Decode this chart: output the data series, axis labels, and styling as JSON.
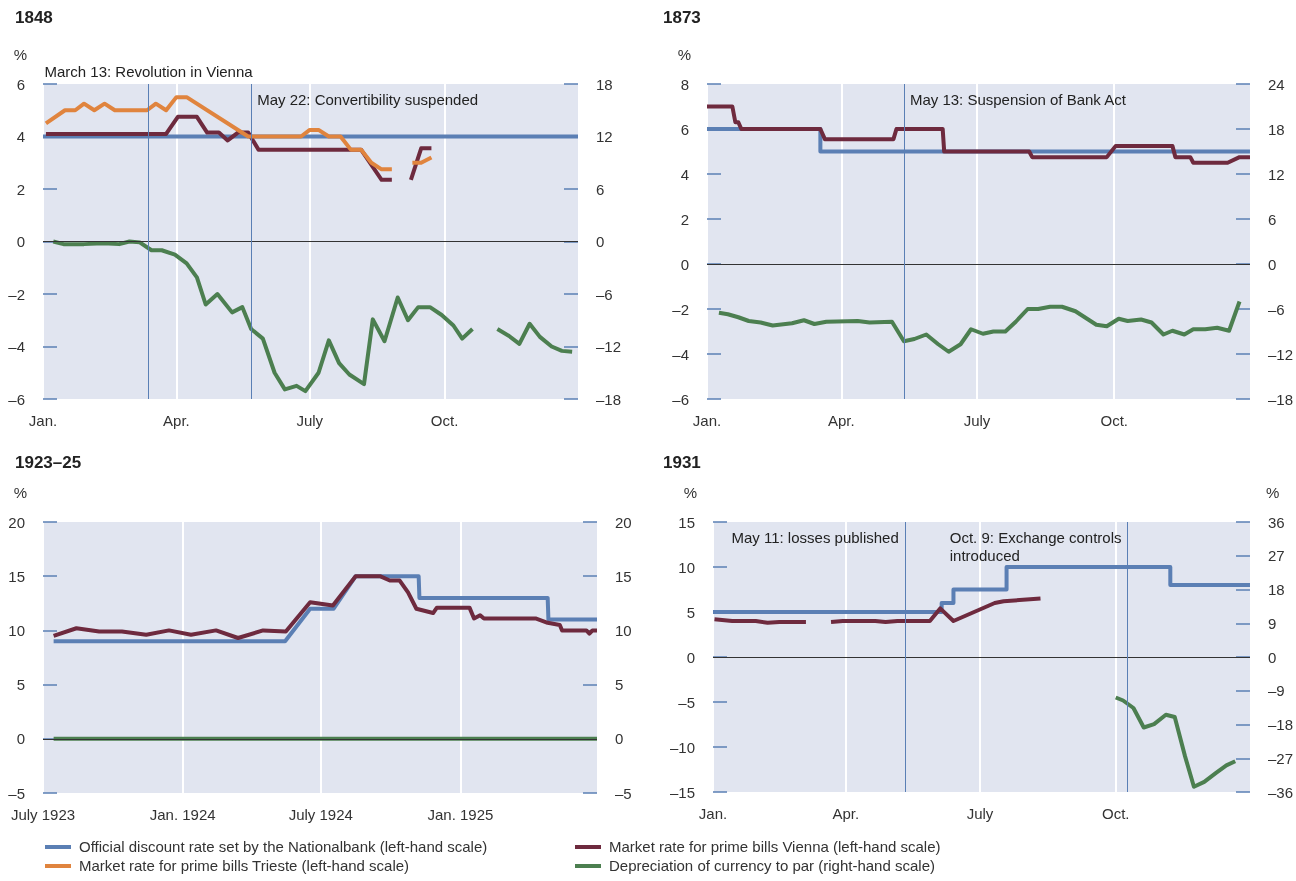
{
  "chart_data": [
    {
      "type": "line",
      "title": "1848",
      "ylabel": "%",
      "xlim": [
        "1848-01-01",
        "1848-12-31"
      ],
      "xticks": [
        {
          "value": "1848-01-01",
          "label": "Jan."
        },
        {
          "value": "1848-04-01",
          "label": "Apr."
        },
        {
          "value": "1848-07-01",
          "label": "July"
        },
        {
          "value": "1848-10-01",
          "label": "Oct."
        }
      ],
      "ylim": [
        -6,
        6
      ],
      "yticks": [
        {
          "value": -6,
          "label": "–6"
        },
        {
          "value": -4,
          "label": "–4"
        },
        {
          "value": -2,
          "label": "–2"
        },
        0,
        2,
        4,
        6
      ],
      "y2lim": [
        -18,
        18
      ],
      "y2ticks": [
        {
          "value": -18,
          "label": "–18"
        },
        {
          "value": -12,
          "label": "–12"
        },
        {
          "value": -6,
          "label": "–6"
        },
        0,
        6,
        12,
        18
      ],
      "grid": "x",
      "legend": "bottom",
      "ref_lines": [
        {
          "axis": "y",
          "value": 0,
          "color": "#333333"
        },
        {
          "axis": "x",
          "value": "1848-03-13",
          "label": "March 13: Revolution in Vienna",
          "color": "#5a7fb5"
        },
        {
          "axis": "x",
          "value": "1848-05-22",
          "label": "May 22: Convertibility suspended",
          "color": "#5a7fb5"
        }
      ],
      "series": [
        {
          "name": "Official discount rate set by the Nationalbank (left-hand scale)",
          "type": "step",
          "color": "#5b7fb4",
          "x": [
            "1848-01-01",
            "1848-12-31"
          ],
          "values": [
            4,
            4
          ]
        },
        {
          "name": "Market rate for prime bills Vienna (left-hand scale)",
          "color": "#6e2a3e",
          "x": [
            "1848-01-03",
            "1848-03-25",
            "1848-04-02",
            "1848-04-15",
            "1848-04-22",
            "1848-04-30",
            "1848-05-06",
            "1848-05-13",
            "1848-05-20",
            "1848-05-27",
            "1848-08-05",
            "1848-08-19",
            "1848-08-26",
            "1848-09-01",
            "1848-09-08",
            "1848-09-15",
            "1848-09-22"
          ],
          "values": [
            4.1,
            4.1,
            4.75,
            4.75,
            4.15,
            4.15,
            3.85,
            4.15,
            4.15,
            3.5,
            3.5,
            2.35,
            2.35,
            null,
            2.35,
            3.55,
            3.55
          ]
        },
        {
          "name": "Market rate for prime bills Trieste (left-hand scale)",
          "color": "#e0843e",
          "x": [
            "1848-01-03",
            "1848-01-16",
            "1848-01-23",
            "1848-01-29",
            "1848-02-05",
            "1848-02-12",
            "1848-02-19",
            "1848-03-12",
            "1848-03-18",
            "1848-03-25",
            "1848-04-01",
            "1848-04-08",
            "1848-05-20",
            "1848-06-25",
            "1848-07-01",
            "1848-07-07",
            "1848-07-14",
            "1848-07-22",
            "1848-07-29",
            "1848-08-05",
            "1848-08-12",
            "1848-08-19",
            "1848-08-26",
            "1848-09-01",
            "1848-09-09",
            "1848-09-15",
            "1848-09-22"
          ],
          "values": [
            4.5,
            5,
            5,
            5.25,
            5,
            5.25,
            5,
            5,
            5.25,
            5,
            5.5,
            5.5,
            4,
            4,
            4.25,
            4.25,
            4,
            4,
            3.5,
            3.5,
            3,
            2.75,
            2.75,
            null,
            3,
            3,
            3.2
          ]
        },
        {
          "name": "Depreciation of currency to par (right-hand scale)",
          "color": "#4c7f50",
          "axis": "y2",
          "x": [
            "1848-01-08",
            "1848-01-15",
            "1848-01-29",
            "1848-02-11",
            "1848-02-22",
            "1848-02-29",
            "1848-03-07",
            "1848-03-15",
            "1848-03-22",
            "1848-03-31",
            "1848-04-08",
            "1848-04-15",
            "1848-04-21",
            "1848-04-29",
            "1848-05-09",
            "1848-05-16",
            "1848-05-22",
            "1848-05-30",
            "1848-06-07",
            "1848-06-14",
            "1848-06-22",
            "1848-06-28",
            "1848-07-07",
            "1848-07-14",
            "1848-07-21",
            "1848-07-28",
            "1848-08-07",
            "1848-08-13",
            "1848-08-21",
            "1848-08-30",
            "1848-09-06",
            "1848-09-13",
            "1848-09-21",
            "1848-09-29",
            "1848-10-07",
            "1848-10-13",
            "1848-10-20",
            "1848-10-27",
            "1848-11-06",
            "1848-11-14",
            "1848-11-21",
            "1848-11-28",
            "1848-12-05",
            "1848-12-13",
            "1848-12-20",
            "1848-12-27"
          ],
          "values": [
            0,
            -0.3,
            -0.3,
            -0.2,
            -0.3,
            0,
            -0.1,
            -1,
            -1,
            -1.5,
            -2.5,
            -4.1,
            -7.2,
            -6,
            -8.1,
            -7.5,
            -10,
            -11.1,
            -15,
            -16.9,
            -16.5,
            -17.1,
            -15,
            -11.3,
            -13.9,
            -15.2,
            -16.3,
            -8.9,
            -11.4,
            -6.4,
            -9,
            -7.5,
            -7.5,
            -8.4,
            -9.6,
            -11.1,
            -10,
            null,
            -10,
            -10.8,
            -11.7,
            -9.4,
            -10.9,
            -12,
            -12.5,
            -12.6
          ]
        }
      ]
    },
    {
      "type": "line",
      "title": "1873",
      "ylabel": "%",
      "xlim": [
        "1873-01-01",
        "1873-12-31"
      ],
      "xticks": [
        {
          "value": "1873-01-01",
          "label": "Jan."
        },
        {
          "value": "1873-04-01",
          "label": "Apr."
        },
        {
          "value": "1873-07-01",
          "label": "July"
        },
        {
          "value": "1873-10-01",
          "label": "Oct."
        }
      ],
      "ylim": [
        -6,
        8
      ],
      "yticks": [
        {
          "value": -6,
          "label": "–6"
        },
        {
          "value": -4,
          "label": "–4"
        },
        {
          "value": -2,
          "label": "–2"
        },
        0,
        2,
        4,
        6,
        8
      ],
      "y2lim": [
        -18,
        24
      ],
      "y2ticks": [
        {
          "value": -18,
          "label": "–18"
        },
        {
          "value": -12,
          "label": "–12"
        },
        {
          "value": -6,
          "label": "–6"
        },
        0,
        6,
        12,
        18,
        24
      ],
      "grid": "x",
      "ref_lines": [
        {
          "axis": "y",
          "value": 0,
          "color": "#333333"
        },
        {
          "axis": "x",
          "value": "1873-05-13",
          "label": "May 13: Suspension of Bank Act",
          "color": "#5a7fb5"
        }
      ],
      "series": [
        {
          "type": "step",
          "color": "#5b7fb4",
          "x": [
            "1873-01-01",
            "1873-03-18",
            "1873-12-31"
          ],
          "values": [
            6,
            5,
            5
          ]
        },
        {
          "color": "#6e2a3e",
          "x": [
            "1873-01-01",
            "1873-01-18",
            "1873-01-20",
            "1873-01-22",
            "1873-01-24",
            "1873-03-18",
            "1873-03-21",
            "1873-05-06",
            "1873-05-08",
            "1873-06-08",
            "1873-06-09",
            "1873-08-05",
            "1873-08-07",
            "1873-09-26",
            "1873-10-02",
            "1873-11-09",
            "1873-11-11",
            "1873-11-21",
            "1873-11-23",
            "1873-12-16",
            "1873-12-24",
            "1873-12-31"
          ],
          "values": [
            7,
            7,
            6.3,
            6.3,
            6,
            6,
            5.55,
            5.55,
            6,
            6,
            5,
            5,
            4.75,
            4.75,
            5.25,
            5.25,
            4.75,
            4.75,
            4.5,
            4.5,
            4.75,
            4.75
          ]
        },
        {
          "color": "#4c7f50",
          "axis": "y2",
          "x": [
            "1873-01-09",
            "1873-01-15",
            "1873-01-22",
            "1873-01-29",
            "1873-02-06",
            "1873-02-14",
            "1873-02-27",
            "1873-03-07",
            "1873-03-14",
            "1873-03-22",
            "1873-04-12",
            "1873-04-20",
            "1873-05-05",
            "1873-05-13",
            "1873-05-20",
            "1873-05-28",
            "1873-06-05",
            "1873-06-12",
            "1873-06-20",
            "1873-06-27",
            "1873-07-05",
            "1873-07-12",
            "1873-07-20",
            "1873-07-27",
            "1873-08-04",
            "1873-08-11",
            "1873-08-19",
            "1873-08-27",
            "1873-09-05",
            "1873-09-19",
            "1873-09-26",
            "1873-10-04",
            "1873-10-10",
            "1873-10-19",
            "1873-10-26",
            "1873-11-03",
            "1873-11-09",
            "1873-11-17",
            "1873-11-23",
            "1873-12-01",
            "1873-12-09",
            "1873-12-17",
            "1873-12-24"
          ],
          "values": [
            -6.5,
            -6.7,
            -7.1,
            -7.6,
            -7.8,
            -8.2,
            -7.9,
            -7.5,
            -8,
            -7.7,
            -7.6,
            -7.8,
            -7.7,
            -10.3,
            -10,
            -9.4,
            -10.7,
            -11.7,
            -10.7,
            -8.7,
            -9.3,
            -9,
            -9,
            -7.7,
            -6,
            -6,
            -5.7,
            -5.7,
            -6.3,
            -8.1,
            -8.3,
            -7.3,
            -7.6,
            -7.4,
            -7.8,
            -9.4,
            -8.9,
            -9.4,
            -8.7,
            -8.7,
            -8.5,
            -8.9,
            -5
          ]
        }
      ]
    },
    {
      "type": "line",
      "title": "1923–25",
      "ylabel": "%",
      "xlim": [
        "1923-07-01",
        "1925-06-30"
      ],
      "xticks": [
        {
          "value": "1923-07-01",
          "label": "July 1923"
        },
        {
          "value": "1924-01-01",
          "label": "Jan. 1924"
        },
        {
          "value": "1924-07-01",
          "label": "July 1924"
        },
        {
          "value": "1925-01-01",
          "label": "Jan. 1925"
        }
      ],
      "ylim": [
        -5,
        20
      ],
      "yticks": [
        {
          "value": -5,
          "label": "–5"
        },
        0,
        5,
        10,
        15,
        20
      ],
      "y2lim": [
        -5,
        20
      ],
      "y2ticks": [
        {
          "value": -5,
          "label": "–5"
        },
        0,
        5,
        10,
        15,
        20
      ],
      "grid": "x",
      "ref_lines": [
        {
          "axis": "y",
          "value": 0,
          "color": "#333333"
        }
      ],
      "series": [
        {
          "color": "#5b7fb4",
          "x": [
            "1923-07-15",
            "1924-05-15",
            "1924-06-17",
            "1924-07-18",
            "1924-08-16",
            "1924-11-07",
            "1924-11-08",
            "1925-04-26",
            "1925-04-27",
            "1925-06-30"
          ],
          "values": [
            9,
            9,
            12,
            12,
            15,
            15,
            13,
            13,
            11,
            11
          ]
        },
        {
          "color": "#6e2a3e",
          "x": [
            "1923-07-15",
            "1923-08-14",
            "1923-09-13",
            "1923-10-13",
            "1923-11-14",
            "1923-12-14",
            "1924-01-12",
            "1924-02-14",
            "1924-03-14",
            "1924-04-16",
            "1924-05-16",
            "1924-06-17",
            "1924-07-17",
            "1924-08-16",
            "1924-09-17",
            "1924-09-30",
            "1924-10-13",
            "1924-10-24",
            "1924-11-04",
            "1924-11-26",
            "1924-12-01",
            "1925-01-13",
            "1925-01-19",
            "1925-01-27",
            "1925-02-01",
            "1925-03-24",
            "1925-04-10",
            "1925-04-26",
            "1925-05-12",
            "1925-05-15",
            "1925-06-16",
            "1925-06-20",
            "1925-06-24",
            "1925-06-30"
          ],
          "values": [
            9.5,
            10.2,
            9.9,
            9.9,
            9.6,
            10,
            9.6,
            10,
            9.3,
            10,
            9.9,
            12.6,
            12.3,
            15,
            15,
            14.6,
            14.6,
            13.5,
            12,
            11.6,
            12.1,
            12.1,
            11.1,
            11.4,
            11.1,
            11.1,
            11.1,
            10.7,
            10.5,
            10,
            10,
            9.7,
            10,
            10
          ]
        },
        {
          "color": "#4c7f50",
          "axis": "y2",
          "x": [
            "1923-07-15",
            "1925-06-30"
          ],
          "values": [
            0,
            0
          ]
        }
      ]
    },
    {
      "type": "line",
      "title": "1931",
      "ylabel": "%",
      "y2label": "%",
      "xlim": [
        "1931-01-01",
        "1931-12-31"
      ],
      "xticks": [
        {
          "value": "1931-01-01",
          "label": "Jan."
        },
        {
          "value": "1931-04-01",
          "label": "Apr."
        },
        {
          "value": "1931-07-01",
          "label": "July"
        },
        {
          "value": "1931-10-01",
          "label": "Oct."
        }
      ],
      "ylim": [
        -15,
        15
      ],
      "yticks": [
        {
          "value": -15,
          "label": "–15"
        },
        {
          "value": -10,
          "label": "–10"
        },
        {
          "value": -5,
          "label": "–5"
        },
        0,
        5,
        10,
        15
      ],
      "y2lim": [
        -36,
        36
      ],
      "y2ticks": [
        {
          "value": -36,
          "label": "–36"
        },
        {
          "value": -27,
          "label": "–27"
        },
        {
          "value": -18,
          "label": "–18"
        },
        {
          "value": -9,
          "label": "–9"
        },
        0,
        9,
        18,
        27,
        36
      ],
      "grid": "x",
      "ref_lines": [
        {
          "axis": "y",
          "value": 0,
          "color": "#333333"
        },
        {
          "axis": "x",
          "value": "1931-05-11",
          "label": "May 11: losses published",
          "color": "#5a7fb5"
        },
        {
          "axis": "x",
          "value": "1931-10-09",
          "label": "Oct. 9: Exchange controls introduced",
          "color": "#5a7fb5"
        }
      ],
      "series": [
        {
          "type": "step",
          "color": "#5b7fb4",
          "x": [
            "1931-01-01",
            "1931-06-05",
            "1931-06-13",
            "1931-07-19",
            "1931-11-07",
            "1931-12-31"
          ],
          "values": [
            5,
            6,
            7.5,
            10,
            8,
            8
          ]
        },
        {
          "color": "#6e2a3e",
          "x": [
            "1931-01-02",
            "1931-01-14",
            "1931-01-30",
            "1931-02-07",
            "1931-02-15",
            "1931-03-05",
            "1931-03-17",
            "1931-03-22",
            "1931-03-30",
            "1931-04-21",
            "1931-04-28",
            "1931-05-06",
            "1931-05-28",
            "1931-06-04",
            "1931-06-13",
            "1931-07-11",
            "1931-07-17",
            "1931-08-11"
          ],
          "values": [
            4.2,
            4,
            4,
            3.8,
            3.9,
            3.9,
            null,
            3.9,
            4,
            4,
            3.9,
            4,
            4,
            5.4,
            4,
            6,
            6.2,
            6.5
          ]
        },
        {
          "color": "#4c7f50",
          "axis": "y2",
          "x": [
            "1931-10-01",
            "1931-10-06",
            "1931-10-13",
            "1931-10-20",
            "1931-10-27",
            "1931-11-04",
            "1931-11-10",
            "1931-11-17",
            "1931-11-23",
            "1931-11-30",
            "1931-12-08",
            "1931-12-15",
            "1931-12-21"
          ],
          "values": [
            -10.8,
            -11.6,
            -13.6,
            -18.8,
            -17.9,
            -15.4,
            -16,
            -26.5,
            -34.6,
            -33.3,
            -30.9,
            -28.9,
            -27.8
          ]
        }
      ]
    }
  ]
}
